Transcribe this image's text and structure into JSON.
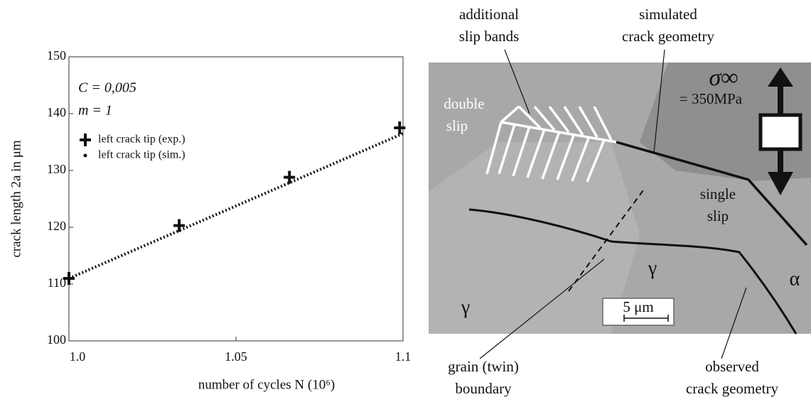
{
  "chart_data": {
    "type": "scatter",
    "xlabel": "number of cycles N (10⁶)",
    "ylabel": "crack length 2a in μm",
    "annotations": [
      "C = 0,005",
      "m = 1"
    ],
    "xlim": [
      1.0,
      1.1
    ],
    "xticks": [
      {
        "value": 1.0,
        "label": "1.0"
      },
      1.05,
      1.1
    ],
    "ylim": [
      100,
      150
    ],
    "yticks": [
      100,
      110,
      120,
      130,
      140,
      150
    ],
    "series": [
      {
        "name": "left crack tip (exp.)",
        "color": "#111111",
        "marker": "plus",
        "x": [
          1.0,
          1.033,
          1.066,
          1.099
        ],
        "values": [
          111,
          120.3,
          128.8,
          137.5
        ]
      },
      {
        "name": "left crack tip (sim.)",
        "color": "#111111",
        "marker": "dot",
        "x": [
          1.0,
          1.1
        ],
        "values": [
          111,
          136.5
        ]
      }
    ]
  },
  "micrograph": {
    "labels": [
      {
        "lines": [
          "additional",
          "slip bands"
        ]
      },
      {
        "lines": [
          "simulated",
          "crack geometry"
        ]
      },
      {
        "lines": [
          "σ∞"
        ]
      },
      {
        "lines": [
          "= 350MPa"
        ]
      },
      {
        "lines": [
          "double",
          "slip"
        ]
      },
      {
        "lines": [
          "single",
          "slip"
        ]
      },
      {
        "lines": [
          "γ"
        ]
      },
      {
        "lines": [
          "γ"
        ]
      },
      {
        "lines": [
          "α"
        ]
      },
      {
        "lines": [
          "5 μm"
        ]
      },
      {
        "lines": [
          "grain (twin)",
          "boundary"
        ]
      },
      {
        "lines": [
          "observed",
          "crack geometry"
        ]
      }
    ]
  }
}
